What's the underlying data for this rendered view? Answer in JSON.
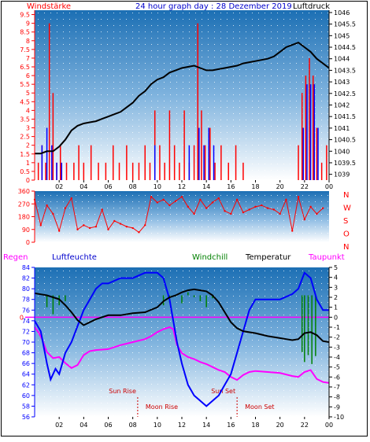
{
  "header": {
    "title": "24 hour graph day : 28 Dezember 2019",
    "wind_label": "Windstärke",
    "pressure_label": "Luftdruck"
  },
  "colors": {
    "wind_speed": "#ff0000",
    "wind_gust": "#0000ff",
    "pressure": "#000000",
    "humidity": "#0000ff",
    "windchill": "#008000",
    "temperature": "#000000",
    "dewpoint": "#ff00ff",
    "zero_line": "#ff00ff",
    "background_top": "#1c6fb4",
    "background_bottom": "#ffffff"
  },
  "chart_data": [
    {
      "type": "line",
      "name": "wind_pressure",
      "x_ticks": [
        "02",
        "04",
        "06",
        "08",
        "10",
        "12",
        "14",
        "16",
        "18",
        "20",
        "22",
        "00"
      ],
      "y_left": {
        "label": "Windstärke",
        "ticks": [
          "0",
          "0.5",
          "1",
          "1.5",
          "2",
          "2.5",
          "3",
          "3.5",
          "4",
          "4.5",
          "5",
          "5.5",
          "6",
          "6.5",
          "7",
          "7.5",
          "8",
          "8.5",
          "9",
          "9.5"
        ],
        "range": [
          0,
          9.75
        ]
      },
      "y_right": {
        "label": "Luftdruck",
        "ticks": [
          "1039",
          "1039.5",
          "1040",
          "1040.5",
          "1041",
          "1041.5",
          "1042",
          "1042.5",
          "1043",
          "1043.5",
          "1044",
          "1044.5",
          "1045",
          "1045.5",
          "1046"
        ],
        "range": [
          1038.75,
          1046.1
        ]
      },
      "series": [
        {
          "name": "Luftdruck",
          "axis": "right",
          "x": [
            0,
            0.5,
            1,
            1.5,
            2,
            2.5,
            3,
            3.5,
            4,
            4.5,
            5,
            5.5,
            6,
            6.5,
            7,
            7.5,
            8,
            8.5,
            9,
            9.5,
            10,
            10.5,
            11,
            11.5,
            12,
            12.5,
            13,
            13.5,
            14,
            14.5,
            15,
            15.5,
            16,
            16.5,
            17,
            17.5,
            18,
            18.5,
            19,
            19.5,
            20,
            20.5,
            21,
            21.5,
            22,
            22.5,
            23,
            23.5,
            24
          ],
          "y": [
            1039.9,
            1039.9,
            1040.0,
            1040.0,
            1040.2,
            1040.5,
            1040.9,
            1041.1,
            1041.2,
            1041.25,
            1041.3,
            1041.4,
            1041.5,
            1041.6,
            1041.7,
            1041.9,
            1042.1,
            1042.4,
            1042.6,
            1042.9,
            1043.1,
            1043.2,
            1043.4,
            1043.5,
            1043.6,
            1043.65,
            1043.7,
            1043.6,
            1043.5,
            1043.5,
            1043.55,
            1043.6,
            1043.65,
            1043.7,
            1043.8,
            1043.85,
            1043.9,
            1043.95,
            1044.0,
            1044.1,
            1044.3,
            1044.5,
            1044.6,
            1044.7,
            1044.5,
            1044.3,
            1044.0,
            1043.8,
            1043.6
          ]
        },
        {
          "name": "Windstärke",
          "axis": "left",
          "x": [
            0.3,
            0.6,
            0.9,
            1.2,
            1.5,
            1.8,
            2.1,
            2.6,
            3.2,
            3.6,
            4.0,
            4.6,
            5.2,
            5.8,
            6.4,
            6.9,
            7.5,
            8.0,
            8.5,
            9.0,
            9.4,
            9.8,
            10.2,
            10.6,
            11.0,
            11.4,
            11.8,
            12.2,
            12.6,
            13.0,
            13.3,
            13.6,
            13.9,
            14.3,
            14.7,
            15.2,
            15.8,
            16.4,
            17.0,
            18.0,
            19.0,
            20.0,
            21.0,
            21.5,
            21.8,
            22.1,
            22.4,
            22.7,
            23.0,
            23.4,
            23.8
          ],
          "y": [
            1,
            2,
            1,
            9,
            5,
            1,
            2,
            1,
            1,
            2,
            1,
            2,
            1,
            1,
            2,
            1,
            2,
            1,
            1,
            2,
            1,
            4,
            2,
            1,
            4,
            2,
            1,
            4,
            1,
            2,
            9,
            4,
            2,
            3,
            1,
            2,
            1,
            2,
            1,
            0,
            0,
            0,
            0,
            2,
            5,
            6,
            7,
            6,
            3,
            1,
            2
          ]
        },
        {
          "name": "Böen",
          "axis": "left",
          "x": [
            0.6,
            1.0,
            1.4,
            1.8,
            2.2,
            9.8,
            12.6,
            13.4,
            13.8,
            14.2,
            14.6,
            21.9,
            22.2,
            22.5,
            22.8,
            23.1
          ],
          "y": [
            2,
            3,
            2,
            1,
            1,
            2,
            2,
            3,
            2,
            3,
            2,
            3,
            5.5,
            5.5,
            5.5,
            3
          ]
        }
      ]
    },
    {
      "type": "scatter",
      "name": "wind_direction",
      "y_ticks": [
        "360",
        "270",
        "180",
        "90",
        "0"
      ],
      "y_range": [
        0,
        360
      ],
      "direction_labels": [
        "N",
        "W",
        "S",
        "O",
        "N"
      ],
      "x": [
        0,
        0.5,
        1,
        1.5,
        2,
        2.5,
        3,
        3.5,
        4,
        4.5,
        5,
        5.5,
        6,
        6.5,
        7,
        7.5,
        8,
        8.5,
        9,
        9.5,
        10,
        10.5,
        11,
        11.5,
        12,
        12.5,
        13,
        13.5,
        14,
        14.5,
        15,
        15.5,
        16,
        16.5,
        17,
        17.5,
        18,
        18.5,
        19,
        19.5,
        20,
        20.5,
        21,
        21.5,
        22,
        22.5,
        23,
        23.5
      ],
      "y": [
        300,
        120,
        260,
        200,
        80,
        240,
        310,
        90,
        120,
        100,
        110,
        230,
        90,
        150,
        130,
        110,
        100,
        70,
        120,
        320,
        280,
        300,
        260,
        290,
        320,
        250,
        200,
        300,
        240,
        280,
        310,
        220,
        200,
        300,
        210,
        230,
        250,
        260,
        240,
        230,
        200,
        300,
        80,
        320,
        160,
        250,
        200,
        240
      ]
    },
    {
      "type": "line",
      "name": "temperature_humidity",
      "labels": {
        "regen": "Regen",
        "luftfeuchte": "Luftfeuchte",
        "windchill": "Windchill",
        "temperatur": "Temperatur",
        "taupunkt": "Taupunkt"
      },
      "x_ticks": [
        "02",
        "04",
        "06",
        "08",
        "10",
        "12",
        "14",
        "16",
        "18",
        "20",
        "22",
        "00"
      ],
      "y_left": {
        "ticks": [
          "84",
          "82",
          "80",
          "78",
          "76",
          "74",
          "72",
          "70",
          "68",
          "66",
          "64",
          "62",
          "60",
          "58",
          "56"
        ],
        "range": [
          56,
          84
        ]
      },
      "y_right": {
        "ticks": [
          "5",
          "4",
          "3",
          "2",
          "1",
          "0",
          "-1",
          "-2",
          "-3",
          "-4",
          "-5",
          "-6",
          "-7",
          "-8",
          "-9",
          "-10"
        ],
        "range": [
          -10,
          5
        ]
      },
      "zero_marker": "0",
      "astro": [
        {
          "label": "Sun Rise",
          "x": 8.4
        },
        {
          "label": "Moon Rise",
          "x": 8.4
        },
        {
          "label": "Sun Set",
          "x": 16.5
        },
        {
          "label": "Moon Set",
          "x": 16.5
        }
      ],
      "series": [
        {
          "name": "Luftfeuchte",
          "axis": "left",
          "x": [
            0,
            0.5,
            1,
            1.3,
            1.7,
            2,
            2.5,
            3,
            3.5,
            4,
            4.5,
            5,
            5.5,
            6,
            7,
            8,
            9,
            10,
            10.5,
            11,
            11.3,
            11.6,
            12,
            12.5,
            13,
            13.5,
            14,
            14.5,
            15,
            15.5,
            16,
            16.5,
            17,
            17.5,
            18,
            19,
            20,
            21,
            21.5,
            22,
            22.5,
            23,
            23.5,
            24
          ],
          "y": [
            74,
            72,
            66,
            63,
            65,
            64,
            68,
            70,
            73,
            76,
            78,
            80,
            81,
            81,
            82,
            82,
            83,
            83,
            82,
            78,
            74,
            70,
            66,
            62,
            60,
            59,
            58,
            59,
            60,
            62,
            64,
            68,
            72,
            76,
            78,
            78,
            78,
            79,
            80,
            83,
            82,
            78,
            76,
            76
          ]
        },
        {
          "name": "Temperatur",
          "axis": "right",
          "x": [
            0,
            0.5,
            1,
            1.5,
            2,
            2.5,
            3,
            3.5,
            4,
            4.5,
            5,
            6,
            7,
            8,
            9,
            10,
            10.5,
            11,
            11.5,
            12,
            12.5,
            13,
            13.5,
            14,
            14.5,
            15,
            15.5,
            16,
            16.5,
            17,
            18,
            19,
            20,
            20.5,
            21,
            21.5,
            22,
            22.5,
            23,
            23.5,
            24
          ],
          "y": [
            2.4,
            2.3,
            2.2,
            2.0,
            1.8,
            1.2,
            0.5,
            -0.3,
            -0.8,
            -0.5,
            -0.2,
            0.2,
            0.2,
            0.4,
            0.5,
            1.0,
            1.6,
            2.0,
            2.2,
            2.5,
            2.7,
            2.8,
            2.7,
            2.6,
            2.2,
            1.5,
            0.5,
            -0.5,
            -1.1,
            -1.4,
            -1.6,
            -1.9,
            -2.1,
            -2.2,
            -2.3,
            -2.2,
            -1.6,
            -1.5,
            -1.8,
            -2.4,
            -2.5
          ]
        },
        {
          "name": "Windchill",
          "axis": "right",
          "x": [
            1,
            1.5,
            2,
            2.5,
            10.5,
            11,
            11.5,
            12,
            12.5,
            13,
            13.5,
            14,
            14.5,
            21.8,
            22,
            22.3,
            22.6,
            22.9
          ],
          "y": [
            1.0,
            0.3,
            1.2,
            1.6,
            1.2,
            1.5,
            2.1,
            1.4,
            2.5,
            2.0,
            1.6,
            1.0,
            1.9,
            -3.5,
            -4.5,
            -3.8,
            -4.7,
            -3.9
          ]
        },
        {
          "name": "Taupunkt",
          "axis": "right",
          "x": [
            0,
            0.3,
            0.6,
            1,
            1.5,
            2,
            2.5,
            3,
            3.5,
            4,
            4.5,
            5,
            6,
            7,
            8,
            9,
            9.5,
            10,
            10.5,
            11,
            11.3,
            11.6,
            12,
            12.5,
            13,
            13.5,
            14,
            14.5,
            15,
            15.5,
            16,
            16.5,
            17,
            17.5,
            18,
            19,
            20,
            21,
            21.5,
            22,
            22.5,
            23,
            23.5,
            24
          ],
          "y": [
            -1.0,
            -1.5,
            -2.2,
            -3.5,
            -4.1,
            -4.0,
            -4.6,
            -5.1,
            -4.8,
            -3.8,
            -3.4,
            -3.3,
            -3.2,
            -2.8,
            -2.5,
            -2.2,
            -1.9,
            -1.5,
            -1.2,
            -1.0,
            -1.2,
            -2.8,
            -3.6,
            -4.0,
            -4.2,
            -4.5,
            -4.7,
            -5.0,
            -5.3,
            -5.5,
            -6.0,
            -6.3,
            -5.8,
            -5.5,
            -5.4,
            -5.5,
            -5.6,
            -5.9,
            -6.0,
            -5.5,
            -5.3,
            -6.2,
            -6.5,
            -6.6
          ]
        }
      ]
    }
  ]
}
